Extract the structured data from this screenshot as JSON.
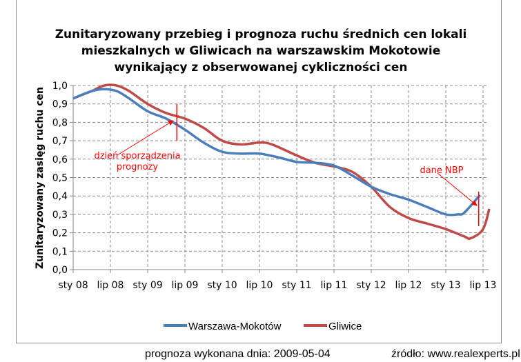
{
  "chart_data": {
    "type": "line",
    "title": [
      "Zunitaryzowany przebieg i prognoza ruchu średnich cen lokali",
      "mieszkalnych w Gliwicach na warszawskim Mokotowie",
      "wynikający z obserwowanej cykliczności cen"
    ],
    "ylabel": "Zunitaryzowany zasięg ruchu cen",
    "xlabel": "",
    "ylim": [
      0,
      1
    ],
    "yticks": [
      "0,0",
      "0,1",
      "0,2",
      "0,3",
      "0,4",
      "0,5",
      "0,6",
      "0,7",
      "0,8",
      "0,9",
      "1,0"
    ],
    "categories": [
      "sty 08",
      "lip 08",
      "sty 09",
      "lip 09",
      "sty 10",
      "lip 10",
      "sty 11",
      "lip 11",
      "sty 12",
      "lip 12",
      "sty 13",
      "lip 13"
    ],
    "x_unit": "months since sty 08",
    "grid": true,
    "legend": "bottom",
    "series": [
      {
        "name": "Warszawa-Mokotów",
        "color": "#4a7ebb",
        "x": [
          0,
          3,
          5,
          7,
          9,
          12,
          15,
          18,
          21,
          24,
          27,
          30,
          33,
          36,
          39,
          42,
          45,
          48,
          51,
          54,
          57,
          60,
          62,
          63,
          65.5
        ],
        "values": [
          0.93,
          0.97,
          0.98,
          0.97,
          0.93,
          0.86,
          0.82,
          0.76,
          0.69,
          0.64,
          0.63,
          0.63,
          0.61,
          0.585,
          0.58,
          0.565,
          0.51,
          0.45,
          0.41,
          0.38,
          0.34,
          0.3,
          0.3,
          0.31,
          0.405
        ]
      },
      {
        "name": "Gliwice",
        "color": "#be4b48",
        "x": [
          0,
          3,
          5,
          7,
          9,
          12,
          15,
          18,
          21,
          24,
          27,
          30,
          32,
          36,
          39,
          42,
          45,
          48,
          51,
          54,
          57,
          60,
          63,
          64,
          66,
          67
        ],
        "values": [
          0.93,
          0.97,
          1.0,
          1.0,
          0.97,
          0.9,
          0.85,
          0.82,
          0.77,
          0.7,
          0.68,
          0.69,
          0.68,
          0.62,
          0.58,
          0.56,
          0.53,
          0.45,
          0.34,
          0.28,
          0.25,
          0.22,
          0.18,
          0.17,
          0.22,
          0.33
        ]
      }
    ],
    "annotations": [
      {
        "text": [
          "dzień sporządzenia",
          "prognozy"
        ],
        "x": 16.7
      },
      {
        "text": [
          "dane NBP"
        ],
        "x": 65.3
      }
    ]
  },
  "footer": {
    "forecast": "prognoza wykonana dnia: 2009-05-04",
    "source": "źródło: www.realexperts.pl"
  }
}
